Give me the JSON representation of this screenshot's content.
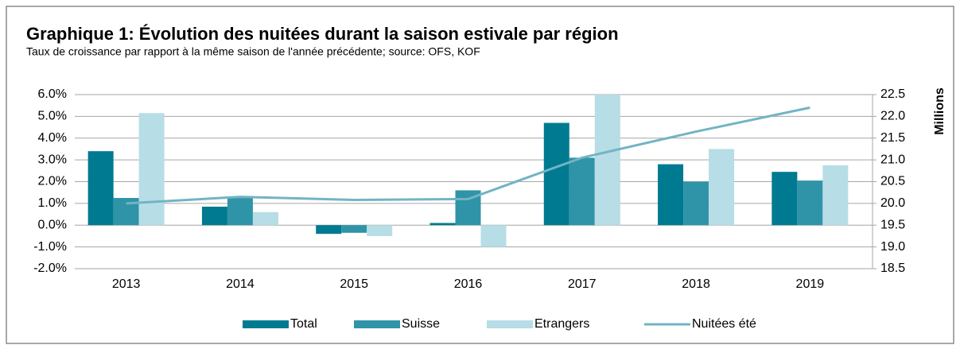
{
  "chart_data": {
    "type": "bar",
    "title": "Graphique 1: Évolution des nuitées durant la saison estivale par région",
    "subtitle": "Taux de croissance par rapport à la même saison de l'année précédente; source: OFS, KOF",
    "y2_label": "Millions",
    "categories": [
      "2013",
      "2014",
      "2015",
      "2016",
      "2017",
      "2018",
      "2019"
    ],
    "series": [
      {
        "name": "Total",
        "type": "bar",
        "color": "#007a91",
        "values": [
          3.4,
          0.85,
          -0.4,
          0.1,
          4.7,
          2.8,
          2.45
        ]
      },
      {
        "name": "Suisse",
        "type": "bar",
        "color": "#2f94a8",
        "values": [
          1.25,
          1.25,
          -0.35,
          1.6,
          3.1,
          2.0,
          2.05
        ]
      },
      {
        "name": "Etrangers",
        "type": "bar",
        "color": "#b7dde6",
        "values": [
          5.15,
          0.6,
          -0.5,
          -1.0,
          6.0,
          3.5,
          2.75
        ]
      },
      {
        "name": "Nuitées été",
        "type": "line",
        "axis": "y2",
        "color": "#72b4c4",
        "values": [
          20.0,
          20.15,
          20.08,
          20.1,
          21.05,
          21.65,
          22.2
        ]
      }
    ],
    "ylim": [
      -2,
      6
    ],
    "yticks": [
      {
        "value": 6,
        "label": "6.0%"
      },
      {
        "value": 5,
        "label": "5.0%"
      },
      {
        "value": 4,
        "label": "4.0%"
      },
      {
        "value": 3,
        "label": "3.0%"
      },
      {
        "value": 2,
        "label": "2.0%"
      },
      {
        "value": 1,
        "label": "1.0%"
      },
      {
        "value": 0,
        "label": "0.0%"
      },
      {
        "value": -1,
        "label": "-1.0%"
      },
      {
        "value": -2,
        "label": "-2.0%"
      }
    ],
    "y2lim": [
      18.5,
      22.5
    ],
    "y2ticks": [
      22.5,
      {
        "value": 22,
        "label": "22.0"
      },
      21.5,
      {
        "value": 21,
        "label": "21.0"
      },
      20.5,
      {
        "value": 20,
        "label": "20.0"
      },
      19.5,
      {
        "value": 19,
        "label": "19.0"
      },
      18.5
    ],
    "grid": true,
    "legend": "bottom"
  }
}
